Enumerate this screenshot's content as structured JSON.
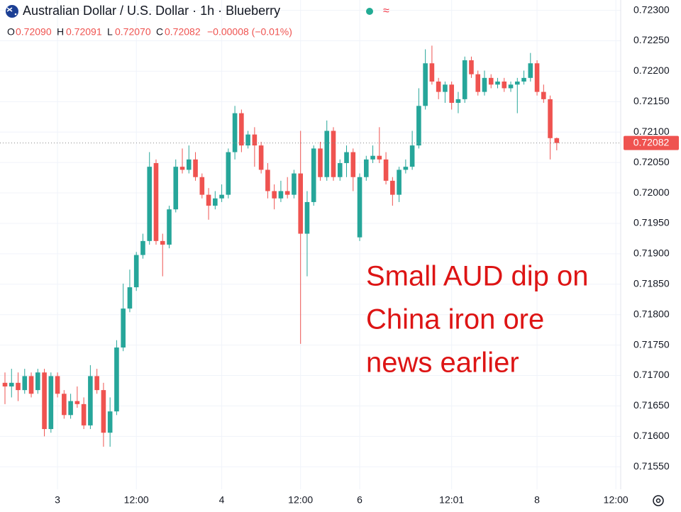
{
  "chart_data": {
    "type": "candlestick",
    "title": "Australian Dollar / U.S. Dollar · 1h · Blueberry",
    "legend_keys": [
      "O",
      "H",
      "L",
      "C"
    ],
    "legend_values": [
      0.7209,
      0.72091,
      0.7207,
      0.72082
    ],
    "legend_value_labels": [
      "0.72090",
      "0.72091",
      "0.72070",
      "0.72082"
    ],
    "change_label": "−0.00008 (−0.01%)",
    "annotation": [
      "Small AUD dip on",
      "China iron ore",
      "news earlier"
    ],
    "annotation_color": "#dd1414",
    "up_color": "#26a69a",
    "down_color": "#ef5350",
    "last_price": {
      "value": 0.72082,
      "label": "0.72082"
    },
    "categories": [
      null,
      null,
      null,
      null,
      null,
      null,
      null,
      null,
      "3",
      null,
      null,
      null,
      null,
      null,
      null,
      null,
      null,
      null,
      null,
      null,
      "12:00",
      null,
      null,
      null,
      null,
      null,
      null,
      null,
      null,
      null,
      null,
      null,
      null,
      "4",
      null,
      null,
      null,
      null,
      null,
      null,
      null,
      null,
      null,
      null,
      null,
      "12:00",
      null,
      null,
      null,
      null,
      null,
      null,
      null,
      null,
      "6",
      null,
      null,
      null,
      null,
      null,
      null,
      null,
      null,
      null,
      null,
      null,
      null,
      null,
      "12:01",
      null,
      null,
      null,
      null,
      null,
      null,
      null,
      null,
      null,
      null,
      null,
      null,
      "8",
      null,
      null,
      null,
      null,
      null,
      null,
      null,
      null,
      null,
      null,
      null,
      "12:00"
    ],
    "open": [
      0.71688,
      0.71682,
      0.71688,
      0.71676,
      0.71699,
      0.71676,
      0.71705,
      0.71612,
      0.71699,
      0.7167,
      0.71635,
      0.71658,
      0.71653,
      0.71618,
      0.71699,
      0.71676,
      0.71606,
      0.71641,
      0.71746,
      0.7181,
      0.71845,
      0.71898,
      0.71921,
      0.72049,
      0.71921,
      0.71915,
      0.71973,
      0.72043,
      0.72038,
      0.72055,
      0.72026,
      0.71997,
      0.71979,
      0.71991,
      0.71997,
      0.72067,
      0.72131,
      0.72078,
      0.72096,
      0.72078,
      0.72038,
      0.72003,
      0.71991,
      0.72003,
      0.71997,
      0.72032,
      0.71933,
      0.71985,
      0.72073,
      0.72026,
      0.72102,
      0.72026,
      0.72049,
      0.72067,
      0.71927,
      0.72026,
      0.72055,
      0.72061,
      0.72055,
      0.7202,
      0.71997,
      0.72038,
      0.72043,
      0.72078,
      0.72143,
      0.72213,
      0.72183,
      0.72166,
      0.72178,
      0.72148,
      0.72154,
      0.72218,
      0.72195,
      0.72166,
      0.72189,
      0.72178,
      0.72183,
      0.72172,
      0.72178,
      0.72183,
      0.72189,
      0.72213,
      0.72166,
      0.72154,
      0.7209,
      null,
      null,
      null,
      null,
      null,
      null,
      null,
      null,
      null
    ],
    "high": [
      0.71705,
      0.71711,
      0.71705,
      0.71711,
      0.71705,
      0.71711,
      0.71711,
      0.71705,
      0.71705,
      0.71676,
      0.7167,
      0.71682,
      0.71664,
      0.71717,
      0.71711,
      0.71688,
      0.71664,
      0.71758,
      0.71851,
      0.71874,
      0.71903,
      0.71933,
      0.72067,
      0.72055,
      0.71933,
      0.71979,
      0.72055,
      0.72073,
      0.72078,
      0.72067,
      0.72032,
      0.72008,
      0.72003,
      0.72014,
      0.72073,
      0.72143,
      0.72137,
      0.72102,
      0.72108,
      0.72084,
      0.72049,
      0.72014,
      0.7202,
      0.72026,
      0.72038,
      0.72102,
      0.72003,
      0.72078,
      0.72084,
      0.72119,
      0.72108,
      0.72055,
      0.72078,
      0.72073,
      0.72032,
      0.72061,
      0.72078,
      0.72108,
      0.72067,
      0.72026,
      0.72043,
      0.72055,
      0.72102,
      0.72172,
      0.72236,
      0.72242,
      0.72189,
      0.72183,
      0.72183,
      0.72166,
      0.72224,
      0.72224,
      0.72201,
      0.72201,
      0.72195,
      0.72189,
      0.72189,
      0.72183,
      0.72189,
      0.72201,
      0.7223,
      0.72218,
      0.72178,
      0.7216,
      0.72091,
      null,
      null,
      null,
      null,
      null,
      null,
      null,
      null,
      null
    ],
    "low": [
      0.71653,
      0.71664,
      0.71658,
      0.7167,
      0.71664,
      0.7167,
      0.716,
      0.71606,
      0.71664,
      0.71629,
      0.71629,
      0.71647,
      0.71612,
      0.71612,
      0.7167,
      0.71583,
      0.71583,
      0.71635,
      0.7174,
      0.71804,
      0.71839,
      0.71892,
      0.71915,
      0.71915,
      0.71863,
      0.71909,
      0.71968,
      0.72032,
      0.72032,
      0.7202,
      0.71991,
      0.71956,
      0.71973,
      0.71985,
      0.71991,
      0.72055,
      0.72067,
      0.72073,
      0.72043,
      0.72032,
      0.71991,
      0.71973,
      0.71985,
      0.71991,
      0.71991,
      0.71752,
      0.71863,
      0.71979,
      0.7202,
      0.7202,
      0.7202,
      0.7202,
      0.72026,
      0.72003,
      0.71921,
      0.7202,
      0.72049,
      0.72049,
      0.72014,
      0.71979,
      0.71985,
      0.72032,
      0.72038,
      0.72073,
      0.72137,
      0.72178,
      0.72154,
      0.72148,
      0.72137,
      0.72131,
      0.72148,
      0.72189,
      0.7216,
      0.7216,
      0.72172,
      0.72172,
      0.72166,
      0.72166,
      0.72131,
      0.72178,
      0.72183,
      0.7216,
      0.72148,
      0.72055,
      0.7207,
      null,
      null,
      null,
      null,
      null,
      null,
      null,
      null,
      null
    ],
    "close": [
      0.71682,
      0.71688,
      0.71676,
      0.71699,
      0.7167,
      0.71705,
      0.71612,
      0.71699,
      0.7167,
      0.71635,
      0.71658,
      0.71653,
      0.71618,
      0.71699,
      0.71676,
      0.71606,
      0.71641,
      0.71746,
      0.7181,
      0.71845,
      0.71898,
      0.71921,
      0.72043,
      0.71921,
      0.71915,
      0.71973,
      0.72043,
      0.72038,
      0.72055,
      0.72026,
      0.71997,
      0.71979,
      0.71991,
      0.71997,
      0.72067,
      0.72131,
      0.72078,
      0.72096,
      0.72078,
      0.72038,
      0.72003,
      0.71991,
      0.72003,
      0.71997,
      0.72032,
      0.71933,
      0.71985,
      0.72073,
      0.72026,
      0.72102,
      0.72026,
      0.72049,
      0.72067,
      0.72026,
      0.72026,
      0.72055,
      0.72061,
      0.72055,
      0.7202,
      0.71997,
      0.72038,
      0.72043,
      0.72078,
      0.72143,
      0.72213,
      0.72183,
      0.72166,
      0.72178,
      0.72148,
      0.72154,
      0.72218,
      0.72195,
      0.72166,
      0.72189,
      0.72178,
      0.72183,
      0.72172,
      0.72178,
      0.72183,
      0.72189,
      0.72213,
      0.72166,
      0.72154,
      0.7209,
      0.72082,
      null,
      null,
      null,
      null,
      null,
      null,
      null,
      null,
      null
    ],
    "ylim": [
      0.71513,
      0.72317
    ],
    "yticks": [
      {
        "value": 0.723,
        "label": "0.72300"
      },
      {
        "value": 0.7225,
        "label": "0.72250"
      },
      {
        "value": 0.722,
        "label": "0.72200"
      },
      {
        "value": 0.7215,
        "label": "0.72150"
      },
      {
        "value": 0.721,
        "label": "0.72100"
      },
      {
        "value": 0.7205,
        "label": "0.72050"
      },
      {
        "value": 0.72,
        "label": "0.72000"
      },
      {
        "value": 0.7195,
        "label": "0.71950"
      },
      {
        "value": 0.719,
        "label": "0.71900"
      },
      {
        "value": 0.7185,
        "label": "0.71850"
      },
      {
        "value": 0.718,
        "label": "0.71800"
      },
      {
        "value": 0.7175,
        "label": "0.71750"
      },
      {
        "value": 0.717,
        "label": "0.71700"
      },
      {
        "value": 0.7165,
        "label": "0.71650"
      },
      {
        "value": 0.716,
        "label": "0.71600"
      },
      {
        "value": 0.7155,
        "label": "0.71550"
      }
    ],
    "grid": true
  }
}
